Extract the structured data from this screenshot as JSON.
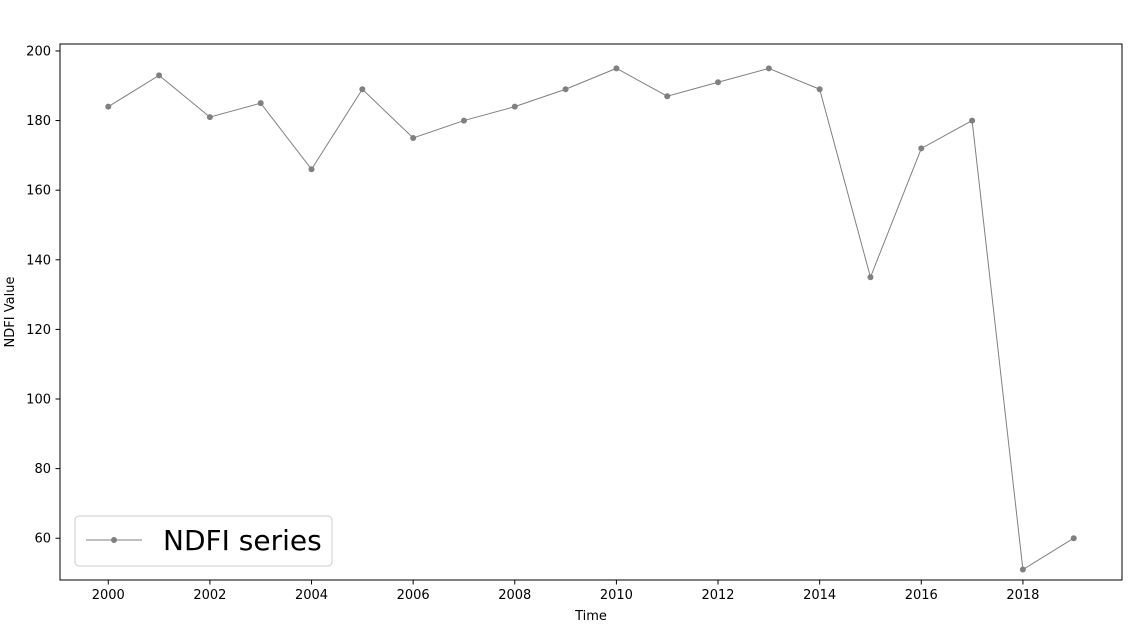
{
  "chart_data": {
    "type": "line",
    "title": "",
    "xlabel": "Time",
    "ylabel": "NDFI Value",
    "x": [
      2000,
      2001,
      2002,
      2003,
      2004,
      2005,
      2006,
      2007,
      2008,
      2009,
      2010,
      2011,
      2012,
      2013,
      2014,
      2015,
      2016,
      2017,
      2018,
      2019
    ],
    "series": [
      {
        "name": "NDFI series",
        "color": "#808080",
        "marker": "circle",
        "values": [
          184,
          193,
          181,
          185,
          166,
          189,
          175,
          180,
          184,
          189,
          195,
          187,
          191,
          195,
          189,
          135,
          172,
          180,
          51,
          60
        ]
      }
    ],
    "xlim": [
      1999.05,
      2019.95
    ],
    "ylim": [
      48,
      202
    ],
    "xticks": [
      2000,
      2002,
      2004,
      2006,
      2008,
      2010,
      2012,
      2014,
      2016,
      2018
    ],
    "yticks": [
      60,
      80,
      100,
      120,
      140,
      160,
      180,
      200
    ],
    "grid": false,
    "legend_position": "lower-left"
  }
}
